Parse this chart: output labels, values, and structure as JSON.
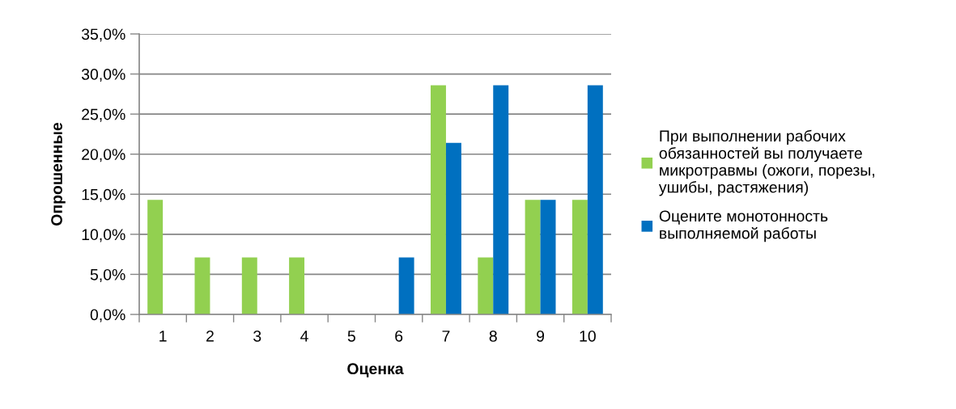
{
  "chart_data": {
    "type": "bar",
    "categories": [
      "1",
      "2",
      "3",
      "4",
      "5",
      "6",
      "7",
      "8",
      "9",
      "10"
    ],
    "series": [
      {
        "name": "При выполнении рабочих обязанностей вы получаете микротравмы (ожоги, порезы, ушибы, растяжения)",
        "color": "#92d050",
        "values": [
          14.3,
          7.1,
          7.1,
          7.1,
          0,
          0,
          28.6,
          7.1,
          14.3,
          14.3
        ]
      },
      {
        "name": "Оцените монотонность выполняемой работы",
        "color": "#0070c0",
        "values": [
          0,
          0,
          0,
          0,
          0,
          7.1,
          21.4,
          28.6,
          14.3,
          28.6
        ]
      }
    ],
    "xlabel": "Оценка",
    "ylabel": "Опрошенные",
    "ylim": [
      0,
      35
    ],
    "yticks": [
      {
        "value": 0,
        "label": "0,0%"
      },
      {
        "value": 5,
        "label": "5,0%"
      },
      {
        "value": 10,
        "label": "10,0%"
      },
      {
        "value": 15,
        "label": "15,0%"
      },
      {
        "value": 20,
        "label": "20,0%"
      },
      {
        "value": 25,
        "label": "25,0%"
      },
      {
        "value": 30,
        "label": "30,0%"
      },
      {
        "value": 35,
        "label": "35,0%"
      }
    ],
    "grid": "y",
    "legend": "right"
  }
}
